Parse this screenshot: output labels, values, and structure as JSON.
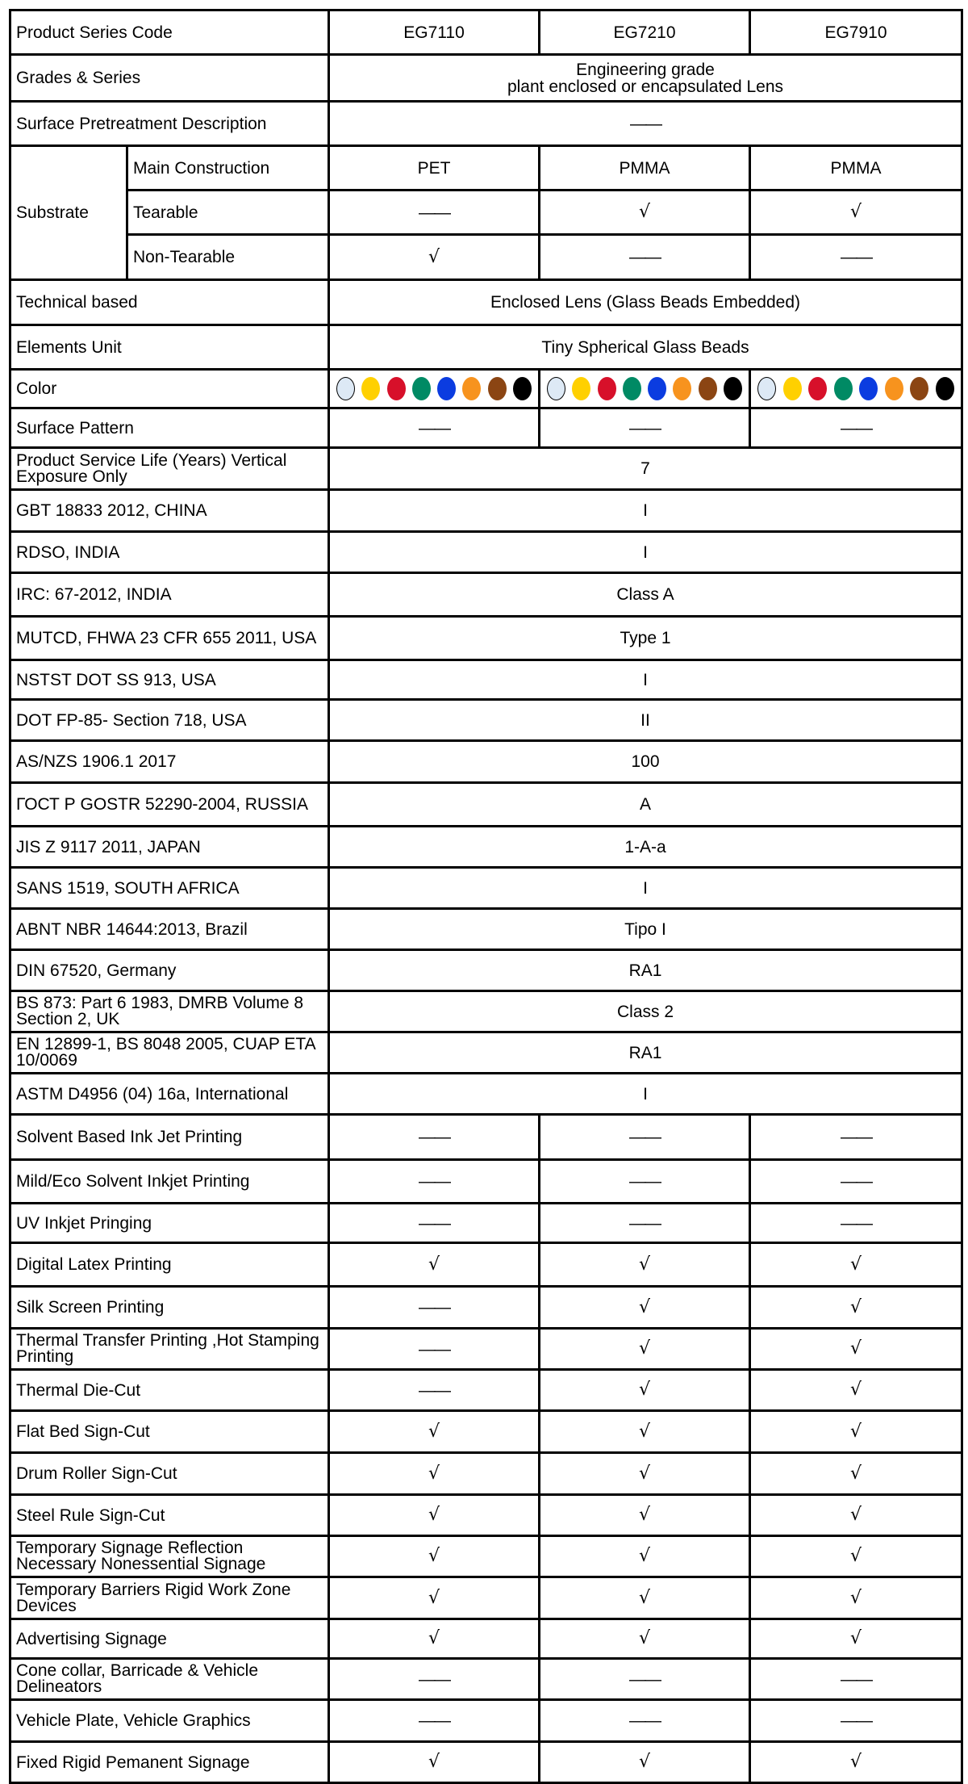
{
  "header": {
    "label": "Product Series Code",
    "codes": [
      "EG7110",
      "EG7210",
      "EG7910"
    ]
  },
  "grades": {
    "label": "Grades & Series",
    "line1": "Engineering grade",
    "line2": "plant enclosed or encapsulated Lens"
  },
  "pretreatment": {
    "label": "Surface Pretreatment Description",
    "value": "——"
  },
  "substrate": {
    "label": "Substrate",
    "rows": [
      {
        "label": "Main Construction",
        "values": [
          "PET",
          "PMMA",
          "PMMA"
        ]
      },
      {
        "label": "Tearable",
        "values": [
          "——",
          "√",
          "√"
        ]
      },
      {
        "label": "Non-Tearable",
        "values": [
          "√",
          "——",
          "——"
        ]
      }
    ]
  },
  "technical": {
    "label": "Technical based",
    "value": "Enclosed Lens (Glass Beads Embedded)"
  },
  "elements": {
    "label": "Elements Unit",
    "value": "Tiny Spherical Glass Beads"
  },
  "color": {
    "label": "Color",
    "swatches": [
      "#dde9f5",
      "#ffd000",
      "#d7102a",
      "#008a64",
      "#0b3ce0",
      "#f7931e",
      "#8b4513",
      "#000000"
    ]
  },
  "pattern": {
    "label": "Surface Pattern",
    "values": [
      "——",
      "——",
      "——"
    ]
  },
  "standards": [
    {
      "label": "Product Service Life (Years) Vertical Exposure Only",
      "value": "7"
    },
    {
      "label": "GBT 18833 2012, CHINA",
      "value": "I"
    },
    {
      "label": "RDSO, INDIA",
      "value": "I"
    },
    {
      "label": "IRC: 67-2012, INDIA",
      "value": "Class A"
    },
    {
      "label": "MUTCD, FHWA 23 CFR 655 2011, USA",
      "value": "Type 1"
    },
    {
      "label": "NSTST DOT SS 913, USA",
      "value": "I"
    },
    {
      "label": "DOT FP-85- Section 718, USA",
      "value": "II"
    },
    {
      "label": "AS/NZS 1906.1 2017",
      "value": "100"
    },
    {
      "label": "ГОСТ Р GOSTR 52290-2004, RUSSIA",
      "value": "A"
    },
    {
      "label": "JIS Z 9117 2011, JAPAN",
      "value": "1-A-a"
    },
    {
      "label": "SANS 1519, SOUTH AFRICA",
      "value": "I"
    },
    {
      "label": "ABNT NBR 14644:2013, Brazil",
      "value": "Tipo I"
    },
    {
      "label": "DIN 67520, Germany",
      "value": "RA1"
    },
    {
      "label": "BS 873: Part 6 1983, DMRB Volume 8 Section 2, UK",
      "value": "Class 2"
    },
    {
      "label": "EN 12899-1, BS 8048 2005, CUAP ETA 10/0069",
      "value": "RA1"
    },
    {
      "label": "ASTM D4956 (04) 16a, International",
      "value": "I"
    }
  ],
  "applications": [
    {
      "label": "Solvent Based Ink Jet Printing",
      "values": [
        "——",
        "——",
        "——"
      ]
    },
    {
      "label": "Mild/Eco Solvent Inkjet Printing",
      "values": [
        "——",
        "——",
        "——"
      ]
    },
    {
      "label": "UV Inkjet Pringing",
      "values": [
        "——",
        "——",
        "——"
      ]
    },
    {
      "label": "Digital Latex Printing",
      "values": [
        "√",
        "√",
        "√"
      ]
    },
    {
      "label": "Silk Screen Printing",
      "values": [
        "——",
        "√",
        "√"
      ]
    },
    {
      "label": "Thermal Transfer Printing ,Hot Stamping Printing",
      "values": [
        "——",
        "√",
        "√"
      ]
    },
    {
      "label": "Thermal Die-Cut",
      "values": [
        "——",
        "√",
        "√"
      ]
    },
    {
      "label": "Flat Bed Sign-Cut",
      "values": [
        "√",
        "√",
        "√"
      ]
    },
    {
      "label": "Drum Roller Sign-Cut",
      "values": [
        "√",
        "√",
        "√"
      ]
    },
    {
      "label": "Steel Rule Sign-Cut",
      "values": [
        "√",
        "√",
        "√"
      ]
    },
    {
      "label": "Temporary Signage Reflection Necessary Nonessential Signage",
      "values": [
        "√",
        "√",
        "√"
      ]
    },
    {
      "label": "Temporary Barriers Rigid Work Zone Devices",
      "values": [
        "√",
        "√",
        "√"
      ]
    },
    {
      "label": "Advertising Signage",
      "values": [
        "√",
        "√",
        "√"
      ]
    },
    {
      "label": "Cone collar, Barricade & Vehicle Delineators",
      "values": [
        "——",
        "——",
        "——"
      ]
    },
    {
      "label": "Vehicle  Plate, Vehicle Graphics",
      "values": [
        "——",
        "——",
        "——"
      ]
    },
    {
      "label": "Fixed Rigid Pemanent Signage",
      "values": [
        "√",
        "√",
        "√"
      ]
    }
  ]
}
